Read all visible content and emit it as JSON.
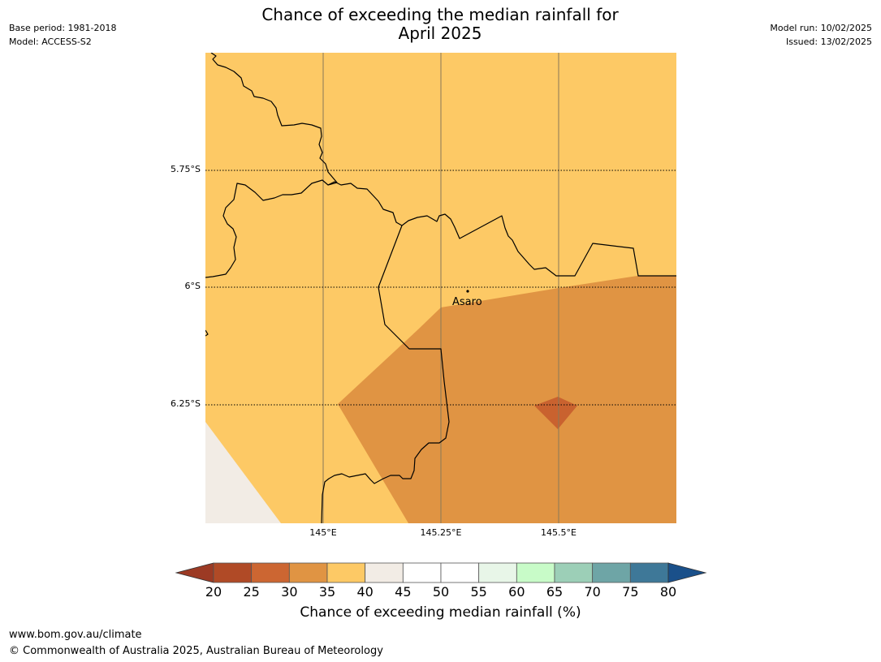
{
  "header": {
    "title_line1": "Chance of exceeding the median rainfall for",
    "title_line2": "April 2025",
    "base_period": "Base period: 1981-2018",
    "model": "Model: ACCESS-S2",
    "model_run": "Model run: 10/02/2025",
    "issued": "Issued: 13/02/2025"
  },
  "map": {
    "lat_ticks": [
      "5.75°S",
      "6°S",
      "6.25°S"
    ],
    "lon_ticks": [
      "145°E",
      "145.25°E",
      "145.5°E"
    ],
    "place_marker": {
      "name": "Asaro"
    },
    "fill_colors": {
      "band_35_40": "#fdc965",
      "band_30_35": "#e09443",
      "band_25_30": "#c9622f",
      "band_40_45": "#f2ece5"
    }
  },
  "colorbar": {
    "title": "Chance of exceeding median rainfall (%)",
    "tick_labels": [
      "20",
      "25",
      "30",
      "35",
      "40",
      "45",
      "50",
      "55",
      "60",
      "65",
      "70",
      "75",
      "80"
    ],
    "colors": [
      "#b04a26",
      "#cc6632",
      "#e09443",
      "#fdc965",
      "#f2ece5",
      "#ffffff",
      "#ffffff",
      "#e8f6e8",
      "#c8fbc8",
      "#9ccfb7",
      "#6ea5a6",
      "#3e7898"
    ],
    "under_color": "#9c3a24",
    "over_color": "#1a508a"
  },
  "footer": {
    "url": "www.bom.gov.au/climate",
    "copyright": "© Commonwealth of Australia 2025, Australian Bureau of Meteorology"
  }
}
